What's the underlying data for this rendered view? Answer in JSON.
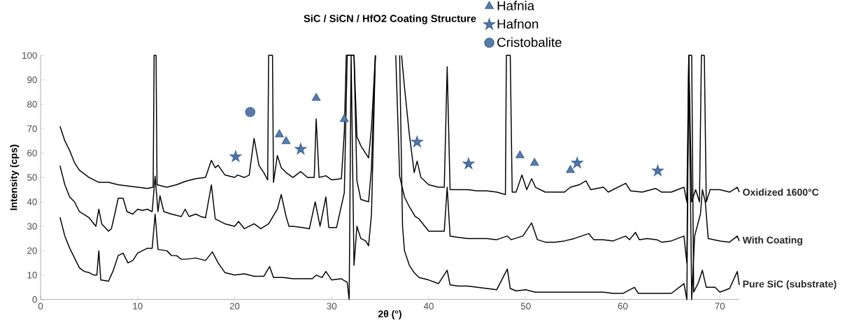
{
  "chart_data": {
    "type": "line",
    "title": "SiC / SiCN / HfO2 Coating Structure",
    "xlabel": "2θ (°)",
    "ylabel": "Intensity (cps)",
    "xlim": [
      0,
      72
    ],
    "ylim": [
      0,
      100
    ],
    "xticks": [
      0,
      10,
      20,
      30,
      40,
      50,
      60,
      70
    ],
    "yticks": [
      0,
      10,
      20,
      30,
      40,
      50,
      60,
      70,
      80,
      90,
      100
    ],
    "legend": "top right",
    "series": [
      {
        "name": "Oxidized 1600°C",
        "color": "#000000",
        "marker": "none",
        "x": [
          2,
          2.5,
          3,
          3.5,
          4,
          5,
          6,
          7,
          8,
          9,
          10,
          11,
          11.6,
          11.7,
          11.9,
          12.0,
          13,
          14,
          15,
          16,
          17,
          17.6,
          18,
          18.3,
          19,
          20,
          20.3,
          21,
          21.5,
          22,
          22.5,
          23,
          23.4,
          23.5,
          23.9,
          24.0,
          24.4,
          24.8,
          25.3,
          26,
          26.8,
          27.5,
          28.2,
          28.4,
          28.7,
          29.4,
          30,
          31,
          31.3,
          31.5,
          32.3,
          32.6,
          33,
          33.8,
          34.1,
          34.5,
          35.5,
          37.2,
          37.5,
          38,
          38.5,
          38.8,
          39.2,
          40,
          41,
          41.6,
          41.9,
          42.2,
          43,
          44,
          45,
          46,
          47,
          47.9,
          48.0,
          48.4,
          48.6,
          49,
          49.6,
          50.1,
          50.6,
          51,
          52,
          53,
          54,
          54.6,
          55.5,
          56.2,
          56.7,
          58,
          58.5,
          60.3,
          60.8,
          62,
          63.4,
          64,
          65,
          66.3,
          66.6,
          66.8,
          67.1,
          67.5,
          67.9,
          68.1,
          68.4,
          68.6,
          69,
          70,
          71,
          71.8,
          72
        ],
        "values": [
          71,
          65,
          61,
          56,
          53,
          50,
          48,
          48,
          47,
          46.5,
          46,
          45.5,
          46,
          100,
          100,
          47,
          46,
          47,
          48.5,
          49.5,
          50,
          57,
          54,
          55,
          51,
          50,
          51,
          50,
          51,
          66,
          55,
          52,
          49,
          100,
          100,
          48,
          59,
          54,
          52,
          50,
          52.4,
          50,
          50,
          74,
          50,
          50.7,
          49,
          49.5,
          68.6,
          100,
          100,
          66.7,
          63,
          58,
          70.5,
          100,
          null,
          100,
          87,
          67.7,
          52,
          56.7,
          50,
          47,
          46,
          46,
          95.4,
          45,
          45,
          45,
          44.5,
          44.5,
          44,
          43,
          100,
          100,
          44,
          44,
          51,
          45,
          49.5,
          46,
          44,
          44,
          44,
          46,
          47,
          48.6,
          45,
          46,
          44,
          47.6,
          44.5,
          44,
          45.5,
          44,
          44,
          46,
          40,
          100,
          40,
          45,
          40,
          100,
          100,
          40,
          45,
          45,
          44,
          46,
          44
        ]
      },
      {
        "name": "With Coating",
        "color": "#000000",
        "marker": "none",
        "x": [
          2,
          2.5,
          3,
          3.5,
          4,
          5,
          5.7,
          6,
          6.3,
          7,
          7.3,
          7.7,
          8,
          8.5,
          8.9,
          9.5,
          10,
          10.5,
          11,
          11.5,
          11.8,
          12.1,
          12.3,
          12.7,
          13.5,
          14.5,
          14.9,
          15.3,
          16,
          16.5,
          17,
          17.6,
          18,
          19,
          20,
          20.4,
          21,
          22,
          22.7,
          23.5,
          24.4,
          24.8,
          25.3,
          25.6,
          26,
          27,
          27.7,
          28.3,
          28.8,
          29.4,
          29.7,
          30.5,
          31.3,
          31.6,
          32.3,
          32.6,
          33,
          33.8,
          34.1,
          34.5,
          35.5,
          36.6,
          37,
          37.5,
          38,
          38.6,
          39,
          40,
          41,
          41.6,
          41.9,
          42.2,
          43,
          44,
          45,
          46,
          47,
          48.1,
          48.5,
          49.7,
          50.6,
          51.2,
          52,
          53,
          54,
          55,
          56.5,
          57,
          58,
          59,
          60.3,
          60.7,
          61.3,
          61.7,
          62.5,
          63.5,
          64,
          65,
          66.3,
          66.6,
          66.8,
          67.1,
          67.4,
          68,
          68.2,
          68.5,
          68.8,
          70,
          71,
          71.8,
          72
        ],
        "values": [
          54.8,
          47,
          42,
          40,
          36,
          33.5,
          30,
          37,
          31,
          28,
          29,
          36,
          41.5,
          41.5,
          36,
          35,
          37,
          36.5,
          37,
          36,
          50.5,
          36,
          42.5,
          36,
          35,
          34,
          37,
          34,
          35,
          34,
          33.5,
          47,
          33,
          31,
          30,
          32,
          29,
          31,
          29,
          31,
          37,
          43,
          34,
          30,
          30,
          29.5,
          29,
          40,
          30,
          42,
          29.5,
          29.5,
          43.8,
          100,
          100,
          48.6,
          41,
          40,
          54,
          100,
          null,
          100,
          50.5,
          42,
          38,
          34,
          33,
          28,
          28,
          28,
          46,
          26,
          25.5,
          25,
          25,
          25,
          24.5,
          26,
          24.5,
          26,
          31.4,
          24.5,
          23.5,
          23.5,
          24,
          25,
          27,
          24.5,
          24.5,
          24,
          26,
          24.5,
          27.5,
          24.5,
          25,
          24.5,
          23.5,
          24,
          26,
          15,
          100,
          0,
          26,
          35,
          45,
          40,
          25,
          24,
          23.5,
          26,
          24
        ]
      },
      {
        "name": "Pure SiC (substrate)",
        "color": "#000000",
        "marker": "none",
        "x": [
          2,
          2.5,
          3,
          3.5,
          4,
          4.5,
          5,
          5.5,
          5.8,
          6,
          6.2,
          7,
          7.5,
          8,
          8.5,
          9,
          9.5,
          10,
          10.5,
          11,
          11.5,
          11.8,
          12.1,
          13,
          13.5,
          14,
          14.5,
          15,
          16,
          17,
          17.7,
          18.3,
          19,
          20,
          21,
          22,
          23,
          23.6,
          24,
          25,
          26,
          27,
          28,
          28.4,
          29,
          29.4,
          30,
          31,
          31.6,
          31.8,
          32,
          32.3,
          32.6,
          33,
          33.5,
          33.8,
          34.1,
          34.5,
          35.5,
          37,
          37.3,
          37.5,
          38,
          38.5,
          39,
          40,
          41,
          41.9,
          42.2,
          43,
          44,
          45,
          46,
          47,
          48.1,
          48.4,
          49,
          50,
          51,
          52,
          53,
          54,
          55,
          56,
          57,
          58,
          59,
          60,
          61.2,
          61.6,
          63,
          65,
          66.3,
          66.6,
          66.8,
          67.1,
          67.3,
          67.8,
          68.2,
          68.6,
          69.5,
          70,
          71,
          71.8,
          72
        ],
        "values": [
          33.7,
          26,
          21,
          17,
          13,
          11.5,
          11,
          10,
          10,
          20,
          8,
          7.5,
          12,
          18,
          19,
          15,
          16,
          19,
          20,
          21,
          21,
          35,
          20.5,
          20,
          18,
          18,
          16.5,
          16.5,
          17,
          16,
          19.5,
          15,
          11,
          10,
          10.5,
          9.5,
          9.5,
          13.5,
          9,
          9,
          8.5,
          8.5,
          8.5,
          10,
          9,
          11.5,
          8,
          8.5,
          7,
          0,
          100,
          14,
          30,
          25,
          24,
          22,
          35,
          100,
          null,
          100,
          30,
          20,
          14,
          11,
          9,
          8,
          6.5,
          12,
          6,
          5.5,
          5.5,
          5,
          4.5,
          4,
          12.5,
          4.5,
          3.5,
          4,
          3,
          3,
          3,
          3,
          3,
          3,
          3,
          3,
          2.5,
          2.5,
          5,
          2.5,
          2.5,
          2.5,
          6.5,
          0,
          100,
          100,
          3,
          7,
          12,
          5,
          5,
          3,
          4.5,
          11.5,
          6
        ]
      },
      {
        "name": "Hafnia",
        "type": "scatter",
        "color": "#3b6499",
        "marker": "triangle",
        "x": [
          24.6,
          25.3,
          28.4,
          31.3,
          49.4,
          50.9,
          54.6
        ],
        "values": [
          67.6,
          64.8,
          82.5,
          73.9,
          59.0,
          55.9,
          53.0
        ]
      },
      {
        "name": "Hafnon",
        "type": "scatter",
        "color": "#3b6499",
        "marker": "star",
        "x": [
          20.1,
          26.8,
          38.8,
          44.1,
          55.3,
          63.6
        ],
        "values": [
          58.5,
          61.6,
          64.5,
          55.6,
          55.9,
          52.7
        ]
      },
      {
        "name": "Cristobalite",
        "type": "scatter",
        "color": "#3b6499",
        "marker": "circle",
        "x": [
          21.6
        ],
        "values": [
          76.8
        ]
      }
    ]
  }
}
